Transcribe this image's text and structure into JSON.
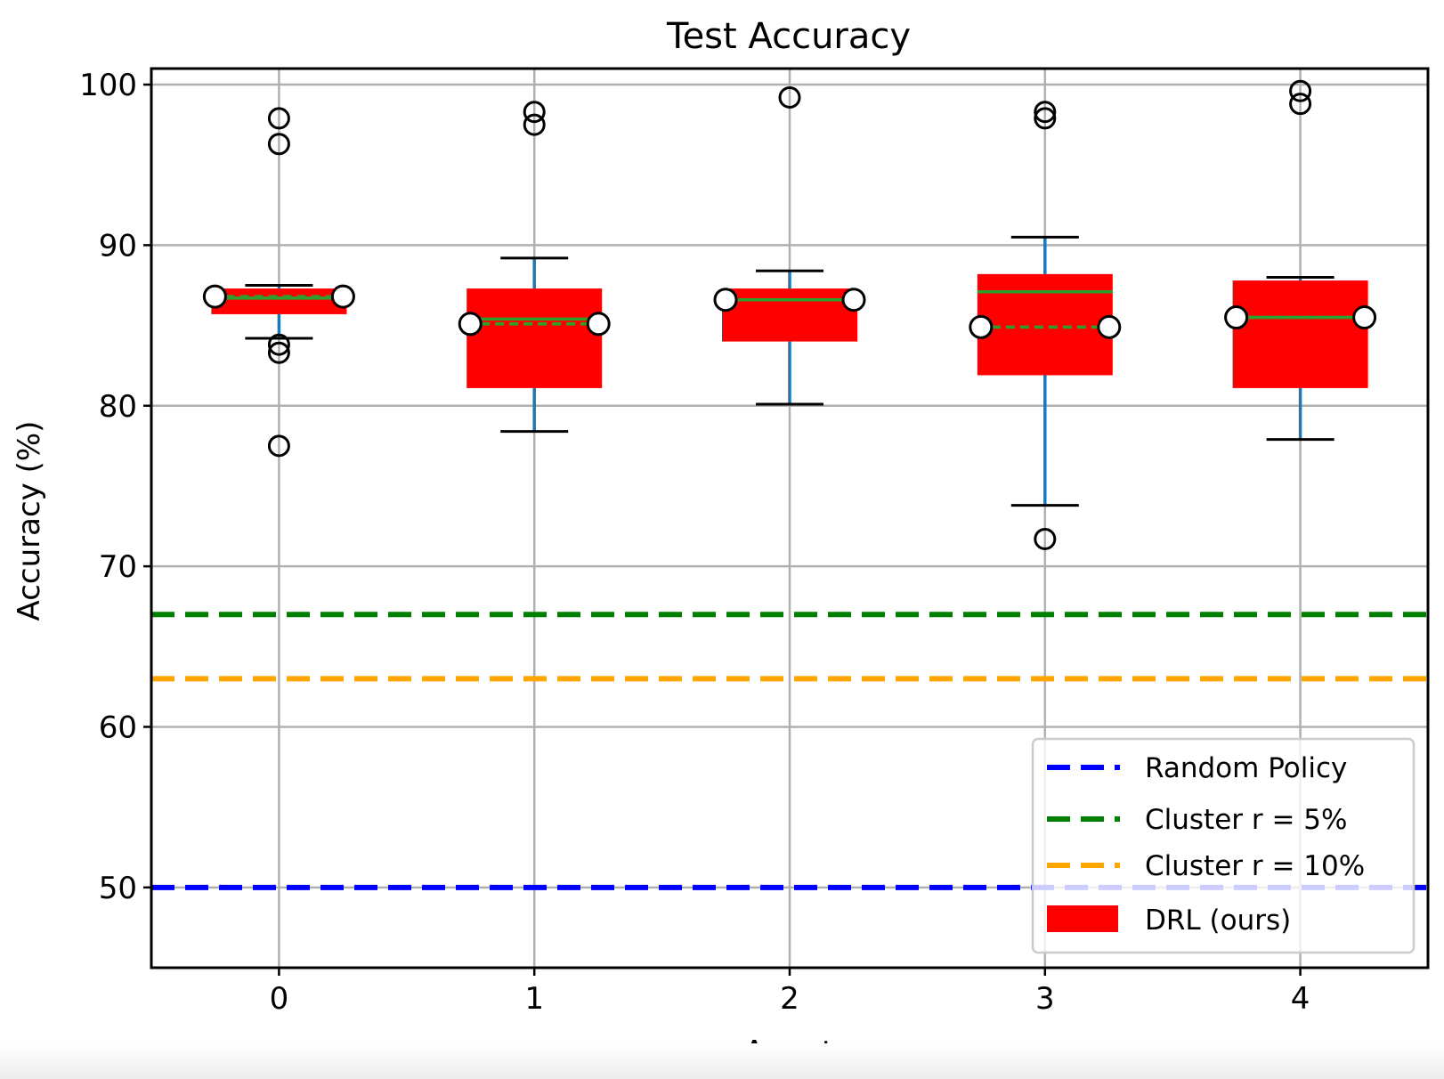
{
  "chart_data": {
    "type": "box",
    "title": "Test Accuracy",
    "xlabel": "Agent",
    "ylabel": "Accuracy (%)",
    "xlim": [
      -0.5,
      4.5
    ],
    "ylim": [
      45,
      101
    ],
    "categories": [
      "0",
      "1",
      "2",
      "3",
      "4"
    ],
    "x_ticks": [
      0,
      1,
      2,
      3,
      4
    ],
    "y_ticks": [
      50,
      60,
      70,
      80,
      90,
      100
    ],
    "grid": true,
    "boxes": [
      {
        "agent": 0,
        "whisker_low": 84.2,
        "q1": 85.7,
        "median": 86.7,
        "mean": 86.8,
        "q3": 87.3,
        "whisker_high": 87.5,
        "outliers": [
          97.9,
          96.3,
          83.8,
          83.3,
          77.5
        ]
      },
      {
        "agent": 1,
        "whisker_low": 78.4,
        "q1": 81.1,
        "median": 85.4,
        "mean": 85.1,
        "q3": 87.3,
        "whisker_high": 89.2,
        "outliers": [
          98.3,
          97.5
        ]
      },
      {
        "agent": 2,
        "whisker_low": 80.1,
        "q1": 84.0,
        "median": 86.6,
        "mean": 86.6,
        "q3": 87.3,
        "whisker_high": 88.4,
        "outliers": [
          99.2
        ]
      },
      {
        "agent": 3,
        "whisker_low": 73.8,
        "q1": 81.9,
        "median": 87.1,
        "mean": 84.9,
        "q3": 88.2,
        "whisker_high": 90.5,
        "outliers": [
          98.3,
          97.9,
          71.7
        ]
      },
      {
        "agent": 4,
        "whisker_low": 77.9,
        "q1": 81.1,
        "median": 85.5,
        "mean": 85.5,
        "q3": 87.8,
        "whisker_high": 88.0,
        "outliers": [
          99.6,
          98.8
        ]
      }
    ],
    "reference_lines": [
      {
        "name": "Random Policy",
        "y": 50,
        "color": "#0000ff",
        "style": "dashed"
      },
      {
        "name": "Cluster r = 5%",
        "y": 67,
        "color": "#008000",
        "style": "dashed"
      },
      {
        "name": "Cluster r = 10%",
        "y": 63,
        "color": "#ffa500",
        "style": "dashed"
      }
    ],
    "legend": {
      "placement": "lower-right",
      "entries": [
        {
          "label": "Random Policy",
          "kind": "dashed-line",
          "color": "#0000ff"
        },
        {
          "label": "Cluster r = 5%",
          "kind": "dashed-line",
          "color": "#008000"
        },
        {
          "label": "Cluster r = 10%",
          "kind": "dashed-line",
          "color": "#ffa500"
        },
        {
          "label": "DRL (ours)",
          "kind": "patch",
          "color": "#ff0000"
        }
      ]
    },
    "colors": {
      "box_fill": "#ff0000",
      "whisker": "#1f77b4",
      "cap": "#000000",
      "median": "#2ca02c",
      "mean": "#2ca02c",
      "grid": "#b0b0b0"
    }
  }
}
